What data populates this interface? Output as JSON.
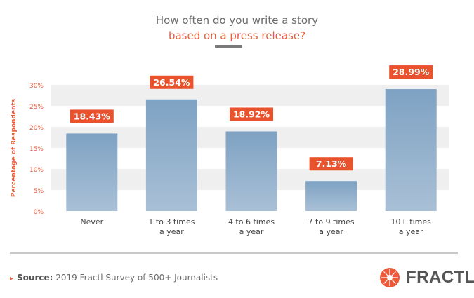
{
  "chart_data": {
    "type": "bar",
    "title_line1": "How often do you write a story",
    "title_line2": "based on a press release?",
    "ylabel": "Percentage of Respondents",
    "xlabel": "",
    "ylim": [
      0,
      30
    ],
    "yticks": [
      "0%",
      "5%",
      "10%",
      "15%",
      "20%",
      "25%",
      "30%"
    ],
    "categories": [
      [
        "Never"
      ],
      [
        "1 to 3 times",
        "a year"
      ],
      [
        "4 to 6 times",
        "a year"
      ],
      [
        "7 to 9 times",
        "a year"
      ],
      [
        "10+ times",
        "a year"
      ]
    ],
    "values": [
      18.43,
      26.54,
      18.92,
      7.13,
      28.99
    ],
    "data_labels": [
      "18.43%",
      "26.54%",
      "18.92%",
      "7.13%",
      "28.99%"
    ],
    "bar_color": "#7fa3c4",
    "label_color": "#e8532e",
    "grid": "alternating bands"
  },
  "footer": {
    "source_label": "Source:",
    "source_text": " 2019 Fractl Survey of 500+ Journalists",
    "logo_text": "FRACTL"
  }
}
